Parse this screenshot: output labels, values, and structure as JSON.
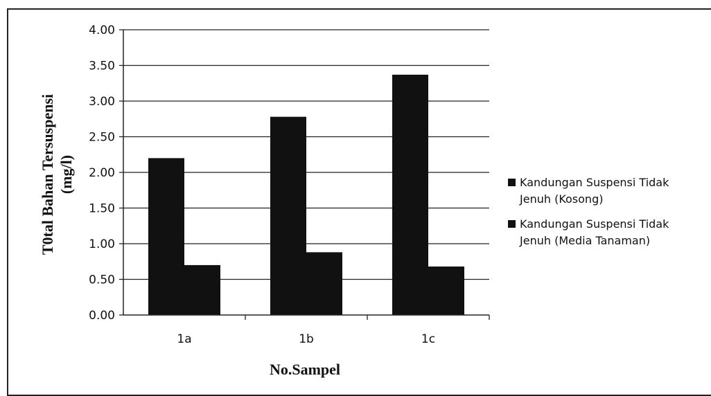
{
  "chart_data": {
    "type": "bar",
    "title": "",
    "xlabel": "No.Sampel",
    "ylabel_lines": [
      "T0tal  Bahan Tersuspensi",
      "(mg/l)"
    ],
    "categories": [
      "1a",
      "1b",
      "1c"
    ],
    "ylim": [
      0,
      4
    ],
    "yticks": [
      "0.00",
      "0.50",
      "1.00",
      "1.50",
      "2.00",
      "2.50",
      "3.00",
      "3.50",
      "4.00"
    ],
    "ytick_values": [
      0,
      0.5,
      1,
      1.5,
      2,
      2.5,
      3,
      3.5,
      4
    ],
    "grid": true,
    "legend_placement": "right",
    "series": [
      {
        "name_lines": [
          "Kandungan Suspensi Tidak",
          "Jenuh (Kosong)"
        ],
        "values": [
          2.2,
          2.78,
          3.37
        ],
        "color": "#111111"
      },
      {
        "name_lines": [
          "Kandungan Suspensi Tidak",
          "Jenuh (Media Tanaman)"
        ],
        "values": [
          0.7,
          0.88,
          0.68
        ],
        "color": "#111111"
      }
    ]
  }
}
